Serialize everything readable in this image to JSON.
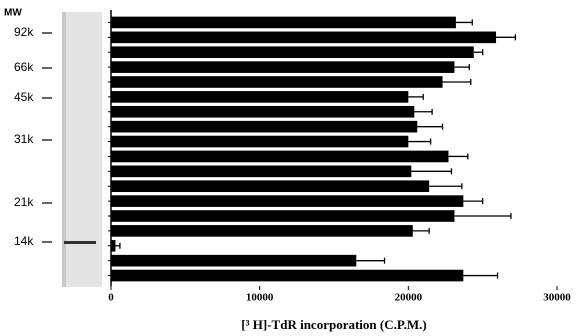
{
  "chart_data": {
    "type": "bar",
    "orientation": "horizontal",
    "x_label": "[³ H]-TdR incorporation (C.P.M.)",
    "marker_title": "MW",
    "markers": [
      "92k",
      "66k",
      "45k",
      "31k",
      "21k",
      "14k"
    ],
    "categories": [
      null,
      null,
      null,
      null,
      null,
      null,
      null,
      null,
      null,
      null,
      null,
      null,
      null,
      null,
      null,
      null,
      null,
      null
    ],
    "values": [
      23200,
      25900,
      24400,
      23100,
      22300,
      20000,
      20400,
      20600,
      20000,
      22700,
      20200,
      21400,
      23700,
      23100,
      20300,
      300,
      16500,
      23700
    ],
    "errors": [
      1100,
      1300,
      600,
      1000,
      1900,
      1000,
      1200,
      1700,
      1500,
      1300,
      2700,
      2200,
      1300,
      3800,
      1100,
      300,
      1900,
      2300
    ],
    "color": "#000000",
    "xlim": [
      0,
      30000
    ],
    "xticks": [
      0,
      10000,
      20000,
      30000
    ]
  }
}
